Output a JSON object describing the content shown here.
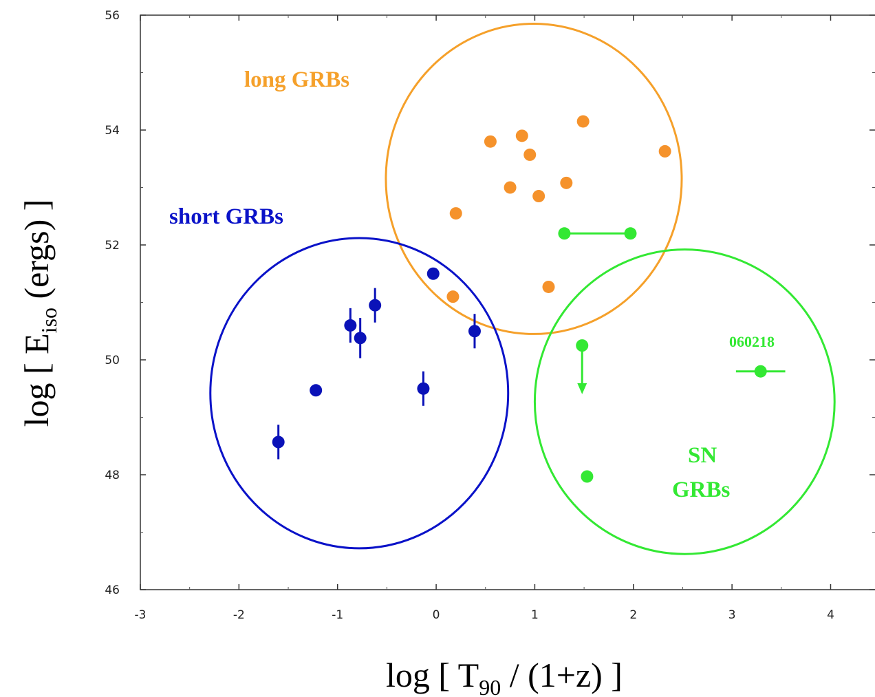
{
  "chart_data": {
    "type": "scatter",
    "xlabel": {
      "prefix": "log [ T",
      "sub": "90",
      "suffix": " / (1+z) ]"
    },
    "ylabel": {
      "prefix": "log [ E",
      "sub": "iso",
      "suffix": " (ergs) ]"
    },
    "xlim": [
      -3,
      4.45
    ],
    "ylim": [
      46,
      56
    ],
    "x_ticks": [
      -3,
      -2,
      -1,
      0,
      1,
      2,
      3,
      4
    ],
    "y_ticks": [
      46,
      48,
      50,
      52,
      54,
      56
    ],
    "grid": false,
    "series": [
      {
        "name": "long GRBs",
        "color": "#f5922b",
        "points": [
          {
            "x": 0.2,
            "y": 52.55
          },
          {
            "x": 0.55,
            "y": 53.8
          },
          {
            "x": 0.75,
            "y": 53.0
          },
          {
            "x": 0.87,
            "y": 53.9
          },
          {
            "x": 0.95,
            "y": 53.57
          },
          {
            "x": 1.04,
            "y": 52.85
          },
          {
            "x": 1.32,
            "y": 53.08
          },
          {
            "x": 1.49,
            "y": 54.15
          },
          {
            "x": 2.32,
            "y": 53.63
          },
          {
            "x": 0.17,
            "y": 51.1
          },
          {
            "x": 1.14,
            "y": 51.27
          }
        ]
      },
      {
        "name": "short GRBs",
        "color": "#0a12b8",
        "points": [
          {
            "x": -1.6,
            "y": 48.57,
            "yerr": [
              0.3,
              0.3
            ]
          },
          {
            "x": -1.22,
            "y": 49.47
          },
          {
            "x": -0.87,
            "y": 50.6,
            "yerr": [
              0.3,
              0.3
            ]
          },
          {
            "x": -0.77,
            "y": 50.38,
            "yerr": [
              0.35,
              0.35
            ]
          },
          {
            "x": -0.62,
            "y": 50.95,
            "yerr": [
              0.3,
              0.3
            ]
          },
          {
            "x": -0.13,
            "y": 49.5,
            "yerr": [
              0.3,
              0.3
            ]
          },
          {
            "x": -0.03,
            "y": 51.5
          },
          {
            "x": 0.39,
            "y": 50.5,
            "yerr": [
              0.3,
              0.3
            ]
          }
        ]
      },
      {
        "name": "SN GRBs",
        "color": "#33e833",
        "points": [
          {
            "x": 1.3,
            "y": 52.2,
            "x_to": 1.97
          },
          {
            "x": 1.48,
            "y": 50.25,
            "upper_limit_to": 49.45
          },
          {
            "x": 1.53,
            "y": 47.97
          },
          {
            "x": 3.29,
            "y": 49.8,
            "xerr": [
              0.25,
              0.25
            ],
            "label": "060218"
          }
        ]
      }
    ],
    "regions": [
      {
        "name": "long GRBs",
        "color": "#f5a02a",
        "cx": 0.99,
        "cy": 53.15,
        "rx": 1.5,
        "ry": 2.7
      },
      {
        "name": "short GRBs",
        "color": "#0a12c8",
        "cx": -0.78,
        "cy": 49.42,
        "rx": 1.51,
        "ry": 2.7
      },
      {
        "name": "SN GRBs",
        "color": "#33e833",
        "cx": 2.52,
        "cy": 49.27,
        "rx": 1.52,
        "ry": 2.65
      }
    ],
    "annotations": [
      {
        "text": "long GRBs",
        "color": "#f5a02a"
      },
      {
        "text": "short GRBs",
        "color": "#0a12c8"
      },
      {
        "text": "SN",
        "color": "#33e833"
      },
      {
        "text": "GRBs",
        "color": "#33e833"
      }
    ]
  }
}
